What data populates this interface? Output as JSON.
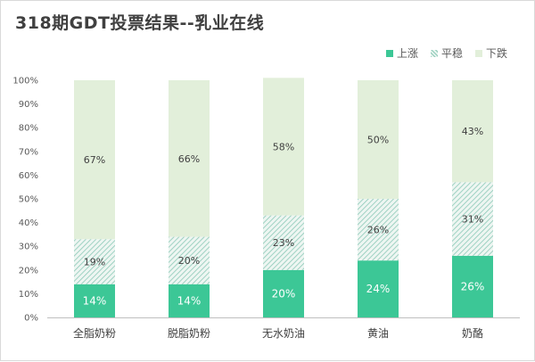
{
  "chart_data": {
    "type": "bar",
    "stacked": true,
    "title": "318期GDT投票结果--乳业在线",
    "categories": [
      "全脂奶粉",
      "脱脂奶粉",
      "无水奶油",
      "黄油",
      "奶酪"
    ],
    "series": [
      {
        "name": "上涨",
        "values": [
          14,
          14,
          20,
          24,
          26
        ],
        "color": "#3cc796"
      },
      {
        "name": "平稳",
        "values": [
          19,
          20,
          23,
          26,
          31
        ],
        "color": "#a8d5c8"
      },
      {
        "name": "下跌",
        "values": [
          67,
          66,
          58,
          50,
          43
        ],
        "color": "#e2efda"
      }
    ],
    "ylim": [
      0,
      100
    ],
    "yticks": [
      "0%",
      "10%",
      "20%",
      "30%",
      "40%",
      "50%",
      "60%",
      "70%",
      "80%",
      "90%",
      "100%"
    ],
    "legend_position": "top-right",
    "grid": false
  }
}
